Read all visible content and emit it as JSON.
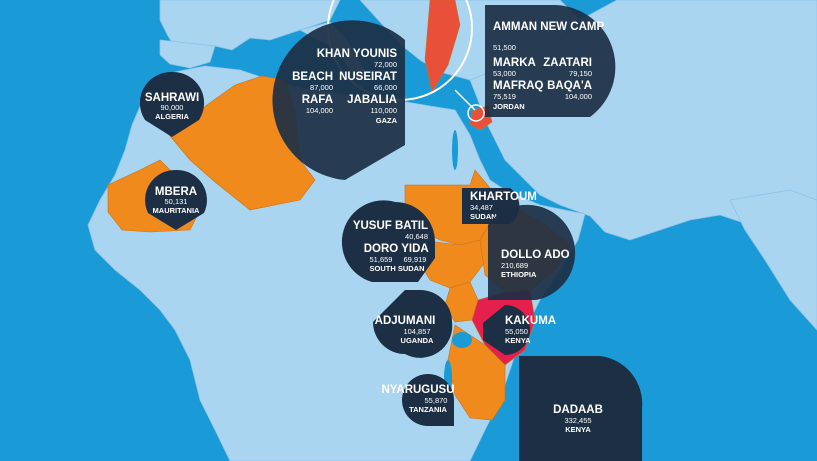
{
  "colors": {
    "ocean": "#1a9ad6",
    "land": "#a9d5f1",
    "highlight": "#f08a1d",
    "accent_red": "#e8503a",
    "accent_magenta": "#e5204c",
    "bubble": "#1c2f44"
  },
  "camps": [
    {
      "id": "khan-younis",
      "name": "KHAN YOUNIS",
      "value": "72,000",
      "country": ""
    },
    {
      "id": "beach",
      "name": "BEACH",
      "value": "87,000",
      "country": ""
    },
    {
      "id": "nuseirat",
      "name": "NUSEIRAT",
      "value": "66,000",
      "country": ""
    },
    {
      "id": "rafa",
      "name": "RAFA",
      "value": "104,000",
      "country": ""
    },
    {
      "id": "jabalia",
      "name": "JABALIA",
      "value": "110,000",
      "country": "GAZA"
    },
    {
      "id": "amman-new-camp",
      "name": "AMMAN NEW CAMP",
      "value": "51,500",
      "country": ""
    },
    {
      "id": "marka",
      "name": "MARKA",
      "value": "53,000",
      "country": ""
    },
    {
      "id": "zaatari",
      "name": "ZAATARI",
      "value": "79,150",
      "country": ""
    },
    {
      "id": "mafraq",
      "name": "MAFRAQ",
      "value": "75,519",
      "country": "JORDAN"
    },
    {
      "id": "baqaa",
      "name": "BAQA'A",
      "value": "104,000",
      "country": ""
    },
    {
      "id": "sahrawi",
      "name": "SAHRAWI",
      "value": "90,000",
      "country": "ALGERIA"
    },
    {
      "id": "mbera",
      "name": "MBERA",
      "value": "50,131",
      "country": "MAURITANIA"
    },
    {
      "id": "khartoum",
      "name": "KHARTOUM",
      "value": "34,487",
      "country": "SUDAN"
    },
    {
      "id": "yusuf-batil",
      "name": "YUSUF BATIL",
      "value": "40,648",
      "country": ""
    },
    {
      "id": "doro",
      "name": "DORO",
      "value": "51,659",
      "country": ""
    },
    {
      "id": "yida",
      "name": "YIDA",
      "value": "69,919",
      "country": "SOUTH SUDAN"
    },
    {
      "id": "dollo-ado",
      "name": "DOLLO ADO",
      "value": "210,689",
      "country": "ETHIOPIA"
    },
    {
      "id": "adjumani",
      "name": "ADJUMANI",
      "value": "104,857",
      "country": "UGANDA"
    },
    {
      "id": "kakuma",
      "name": "KAKUMA",
      "value": "55,050",
      "country": "KENYA"
    },
    {
      "id": "nyarugusu",
      "name": "NYARUGUSU",
      "value": "55,870",
      "country": "TANZANIA"
    },
    {
      "id": "dadaab",
      "name": "DADAAB",
      "value": "332,455",
      "country": "KENYA"
    }
  ]
}
